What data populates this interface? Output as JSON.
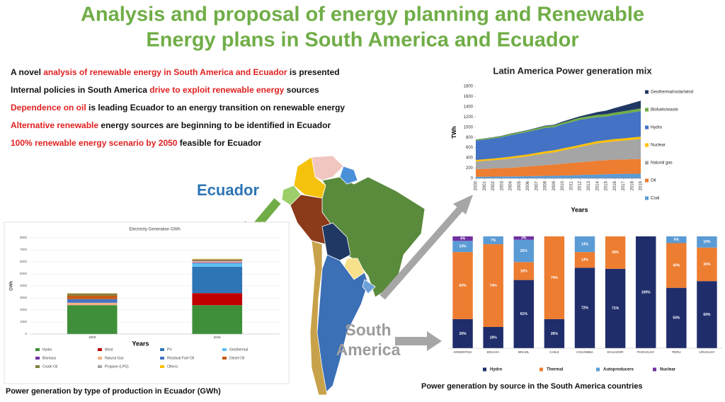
{
  "title": [
    "Analysis and proposal of energy planning and Renewable",
    "Energy plans in South America and Ecuador"
  ],
  "bullets": [
    {
      "segments": [
        {
          "text": "A novel ",
          "emphasis": false
        },
        {
          "text": "analysis of renewable energy in South America and Ecuador",
          "emphasis": true
        },
        {
          "text": " is presented",
          "emphasis": false
        }
      ]
    },
    {
      "segments": [
        {
          "text": "Internal policies in South America ",
          "emphasis": false
        },
        {
          "text": "drive to exploit renewable energy",
          "emphasis": true
        },
        {
          "text": " sources",
          "emphasis": false
        }
      ]
    },
    {
      "segments": [
        {
          "text": "Dependence on oil",
          "emphasis": true
        },
        {
          "text": " is leading Ecuador to an energy transition on renewable energy",
          "emphasis": false
        }
      ]
    },
    {
      "segments": [
        {
          "text": "Alternative renewable",
          "emphasis": true
        },
        {
          "text": " energy sources are beginning to be identified in Ecuador",
          "emphasis": false
        }
      ]
    },
    {
      "segments": [
        {
          "text": "100% renewable energy scenario by 2050",
          "emphasis": true
        },
        {
          "text": " feasible for Ecuador",
          "emphasis": false
        }
      ]
    }
  ],
  "map": {
    "ecuador_label": "Ecuador",
    "south_america_label": [
      "South",
      "America"
    ]
  },
  "chart_data": [
    {
      "type": "area",
      "title": "Latin America Power generation mix",
      "ylabel": "TWh",
      "xlabel": "Years",
      "x": [
        2000,
        2001,
        2002,
        2003,
        2004,
        2005,
        2006,
        2007,
        2008,
        2009,
        2010,
        2011,
        2012,
        2013,
        2014,
        2015,
        2016,
        2017,
        2018,
        2019
      ],
      "xlim": [
        2000,
        2019
      ],
      "xticks": [
        2000,
        2001,
        2002,
        2003,
        2004,
        2005,
        2006,
        2007,
        2008,
        2009,
        2010,
        2011,
        2012,
        2013,
        2014,
        2015,
        2016,
        2017,
        2018,
        2019
      ],
      "ylim": [
        0,
        1800
      ],
      "yticks": [
        0,
        200,
        400,
        600,
        800,
        1000,
        1200,
        1400,
        1600,
        1800
      ],
      "grid": false,
      "legend": "right",
      "series": [
        {
          "name": "Geothermal/solar/wind",
          "color": "#1f3864",
          "values": [
            2,
            3,
            4,
            5,
            6,
            7,
            8,
            10,
            12,
            15,
            20,
            25,
            30,
            40,
            55,
            70,
            90,
            110,
            130,
            150
          ]
        },
        {
          "name": "Biofuels/waste",
          "color": "#70ad47",
          "values": [
            20,
            20,
            22,
            24,
            25,
            26,
            28,
            30,
            32,
            34,
            36,
            38,
            40,
            42,
            44,
            46,
            48,
            50,
            52,
            54
          ]
        },
        {
          "name": "Hydro",
          "color": "#4472c4",
          "values": [
            380,
            385,
            390,
            400,
            420,
            430,
            440,
            450,
            460,
            450,
            470,
            480,
            490,
            480,
            470,
            460,
            470,
            480,
            490,
            500
          ]
        },
        {
          "name": "Nuclear",
          "color": "#ffc000",
          "values": [
            30,
            32,
            34,
            35,
            36,
            37,
            38,
            38,
            39,
            40,
            40,
            40,
            41,
            42,
            42,
            43,
            43,
            44,
            44,
            45
          ]
        },
        {
          "name": "Natural gas",
          "color": "#a5a5a5",
          "values": [
            150,
            155,
            160,
            170,
            180,
            190,
            200,
            215,
            230,
            240,
            260,
            280,
            300,
            320,
            340,
            350,
            360,
            370,
            380,
            390
          ]
        },
        {
          "name": "Oil",
          "color": "#ed7d31",
          "values": [
            150,
            155,
            160,
            165,
            170,
            180,
            190,
            200,
            210,
            220,
            230,
            240,
            250,
            260,
            270,
            275,
            280,
            280,
            285,
            290
          ]
        },
        {
          "name": "Coal",
          "color": "#5b9bd5",
          "values": [
            30,
            32,
            34,
            36,
            38,
            40,
            42,
            45,
            48,
            50,
            55,
            60,
            65,
            70,
            75,
            80,
            85,
            88,
            90,
            90
          ]
        }
      ]
    },
    {
      "type": "bar",
      "title": "Electricity Generation GWh",
      "ylabel": "GWh",
      "xlabel": "Years",
      "caption": "Power generation by type of production in Ecuador (GWh)",
      "categories": [
        "2000",
        "2016"
      ],
      "ylim": [
        0,
        8000
      ],
      "yticks": [
        0,
        1000,
        2000,
        3000,
        4000,
        5000,
        6000,
        7000,
        8000
      ],
      "grid": true,
      "legend": "bottom",
      "series": [
        {
          "name": "Hydro",
          "color": "#3f8f3a",
          "values": [
            2400,
            2400
          ]
        },
        {
          "name": "Wind",
          "color": "#c00000",
          "values": [
            0,
            1000
          ]
        },
        {
          "name": "PV",
          "color": "#2e75b6",
          "values": [
            0,
            2200
          ]
        },
        {
          "name": "Geothermal",
          "color": "#5bc0f0",
          "values": [
            0,
            300
          ]
        },
        {
          "name": "Biomass",
          "color": "#7030a0",
          "values": [
            0,
            50
          ]
        },
        {
          "name": "Natural Gas",
          "color": "#f4b183",
          "values": [
            200,
            100
          ]
        },
        {
          "name": "Residual Fuel Oil",
          "color": "#4472c4",
          "values": [
            300,
            50
          ]
        },
        {
          "name": "Diesel Oil",
          "color": "#c55a11",
          "values": [
            300,
            50
          ]
        },
        {
          "name": "Crude Oil",
          "color": "#7f7f3f",
          "values": [
            150,
            50
          ]
        },
        {
          "name": "Propane (LPG)",
          "color": "#a5a5a5",
          "values": [
            30,
            20
          ]
        },
        {
          "name": "Others",
          "color": "#ffc000",
          "values": [
            20,
            30
          ]
        }
      ]
    },
    {
      "type": "bar",
      "caption": "Power generation by source in the South America countries",
      "categories": [
        "ARGENTINA",
        "BOLIVIA",
        "BRAZIL",
        "CHILE",
        "COLOMBIA",
        "ECUADOR",
        "PARAGUAY",
        "PERU",
        "URUGUAY"
      ],
      "legend": "bottom",
      "series": [
        {
          "name": "Hydro",
          "color": "#1f2d6b",
          "values": [
            26,
            19,
            61,
            26,
            72,
            71,
            100,
            54,
            60
          ],
          "value_labels": [
            "26%",
            "19%",
            "61%",
            "26%",
            "72%",
            "71%",
            "100%",
            "54%",
            "60%"
          ]
        },
        {
          "name": "Thermal",
          "color": "#ed7d31",
          "values": [
            60,
            74,
            16,
            74,
            14,
            29,
            0,
            40,
            30
          ],
          "value_labels": [
            "60%",
            "74%",
            "16%",
            "74%",
            "14%",
            "29%",
            null,
            "40%",
            "30%"
          ]
        },
        {
          "name": "Autoproducers",
          "color": "#5b9bd5",
          "values": [
            10,
            7,
            20,
            0,
            14,
            0,
            0,
            6,
            10
          ],
          "value_labels": [
            "10%",
            "7%",
            "20%",
            null,
            "14%",
            null,
            null,
            "6%",
            "10%"
          ]
        },
        {
          "name": "Nuclear",
          "color": "#7030a0",
          "values": [
            4,
            0,
            3,
            0,
            0,
            0,
            0,
            0,
            0
          ],
          "value_labels": [
            "4%",
            null,
            "3%",
            null,
            null,
            null,
            null,
            null,
            null
          ]
        }
      ]
    }
  ]
}
